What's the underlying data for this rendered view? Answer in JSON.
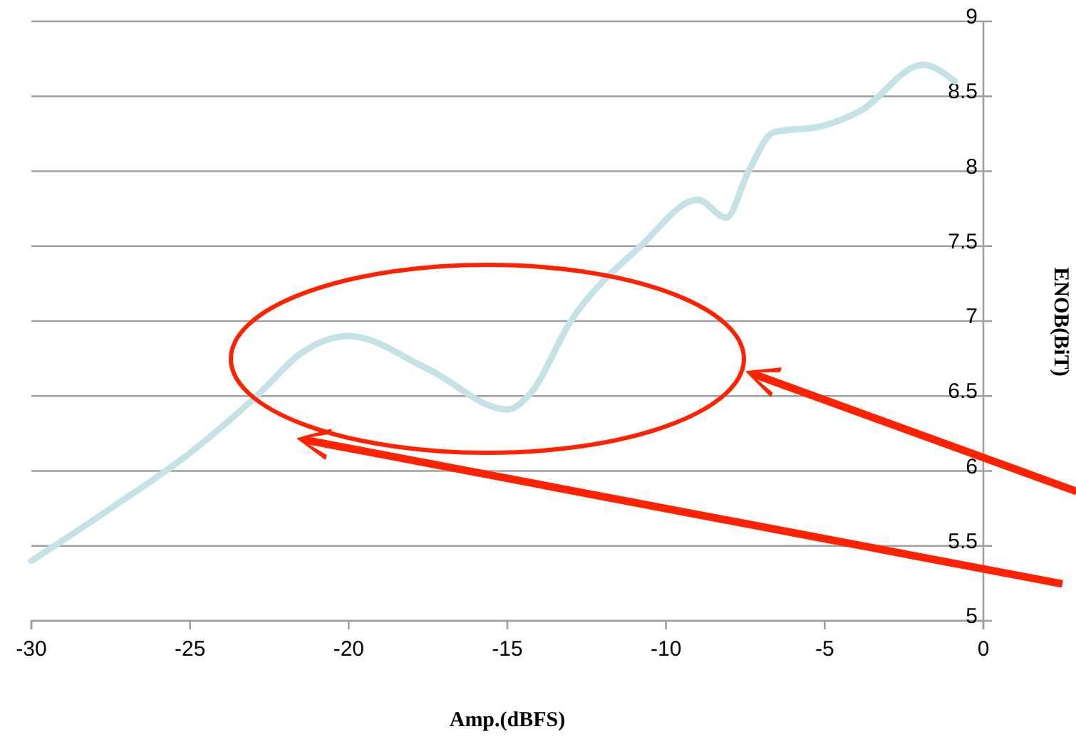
{
  "chart_data": {
    "type": "line",
    "xlabel": "Amp.(dBFS)",
    "ylabel": "ENOB(BiT)",
    "x": [
      -30,
      -27.5,
      -25,
      -22.9,
      -21.4,
      -20,
      -17.5,
      -15,
      -14.3,
      -13,
      -10.8,
      -9,
      -8.1,
      -7.4,
      -6.6,
      -5.1,
      -3.9,
      -1.9,
      -0.9
    ],
    "series": [
      {
        "color": "#c5e3e6",
        "values": [
          5.4,
          5.75,
          6.12,
          6.5,
          6.8,
          6.9,
          6.68,
          6.41,
          6.51,
          7.0,
          7.5,
          7.81,
          7.69,
          8.0,
          8.26,
          8.3,
          8.4,
          8.71,
          8.6
        ]
      }
    ],
    "xlim": [
      -30,
      0
    ],
    "xticks": [
      -30,
      -25,
      -20,
      -15,
      -10,
      -5,
      0
    ],
    "ylim": [
      5,
      9
    ],
    "yticks": [
      5,
      5.5,
      6,
      6.5,
      7,
      7.5,
      8,
      8.5,
      9
    ],
    "grid": "y",
    "line_style": "solid",
    "marker": "none"
  }
}
